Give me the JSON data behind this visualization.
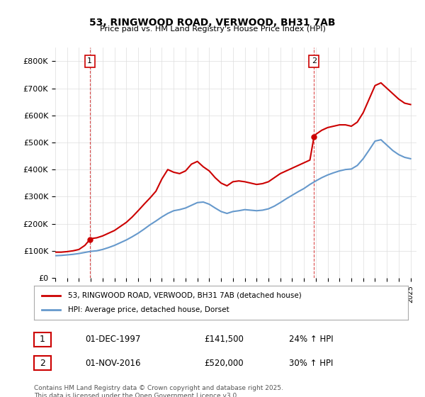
{
  "title": "53, RINGWOOD ROAD, VERWOOD, BH31 7AB",
  "subtitle": "Price paid vs. HM Land Registry's House Price Index (HPI)",
  "legend_label_red": "53, RINGWOOD ROAD, VERWOOD, BH31 7AB (detached house)",
  "legend_label_blue": "HPI: Average price, detached house, Dorset",
  "annotation1_label": "1",
  "annotation1_date": "01-DEC-1997",
  "annotation1_price": "£141,500",
  "annotation1_hpi": "24% ↑ HPI",
  "annotation2_label": "2",
  "annotation2_date": "01-NOV-2016",
  "annotation2_price": "£520,000",
  "annotation2_hpi": "30% ↑ HPI",
  "footer": "Contains HM Land Registry data © Crown copyright and database right 2025.\nThis data is licensed under the Open Government Licence v3.0.",
  "red_color": "#cc0000",
  "blue_color": "#6699cc",
  "vline_color": "#cc0000",
  "background_color": "#ffffff",
  "ylim": [
    0,
    850000
  ],
  "xlim_start": 1995.0,
  "xlim_end": 2025.5,
  "marker1_x": 1997.92,
  "marker1_y": 141500,
  "marker2_x": 2016.84,
  "marker2_y": 520000,
  "red_x": [
    1995.0,
    1995.5,
    1996.0,
    1996.5,
    1997.0,
    1997.5,
    1997.92,
    1998.0,
    1998.5,
    1999.0,
    1999.5,
    2000.0,
    2000.5,
    2001.0,
    2001.5,
    2002.0,
    2002.5,
    2003.0,
    2003.5,
    2004.0,
    2004.5,
    2005.0,
    2005.5,
    2006.0,
    2006.5,
    2007.0,
    2007.5,
    2008.0,
    2008.5,
    2009.0,
    2009.5,
    2010.0,
    2010.5,
    2011.0,
    2011.5,
    2012.0,
    2012.5,
    2013.0,
    2013.5,
    2014.0,
    2014.5,
    2015.0,
    2015.5,
    2016.0,
    2016.5,
    2016.84,
    2017.0,
    2017.5,
    2018.0,
    2018.5,
    2019.0,
    2019.5,
    2020.0,
    2020.5,
    2021.0,
    2021.5,
    2022.0,
    2022.5,
    2023.0,
    2023.5,
    2024.0,
    2024.5,
    2025.0
  ],
  "red_y": [
    95000,
    95000,
    97000,
    100000,
    105000,
    120000,
    141500,
    145000,
    148000,
    155000,
    165000,
    175000,
    190000,
    205000,
    225000,
    248000,
    272000,
    295000,
    320000,
    365000,
    400000,
    390000,
    385000,
    395000,
    420000,
    430000,
    410000,
    395000,
    370000,
    350000,
    340000,
    355000,
    358000,
    355000,
    350000,
    345000,
    348000,
    355000,
    370000,
    385000,
    395000,
    405000,
    415000,
    425000,
    435000,
    520000,
    530000,
    545000,
    555000,
    560000,
    565000,
    565000,
    560000,
    575000,
    610000,
    660000,
    710000,
    720000,
    700000,
    680000,
    660000,
    645000,
    640000
  ],
  "blue_x": [
    1995.0,
    1995.5,
    1996.0,
    1996.5,
    1997.0,
    1997.5,
    1998.0,
    1998.5,
    1999.0,
    1999.5,
    2000.0,
    2000.5,
    2001.0,
    2001.5,
    2002.0,
    2002.5,
    2003.0,
    2003.5,
    2004.0,
    2004.5,
    2005.0,
    2005.5,
    2006.0,
    2006.5,
    2007.0,
    2007.5,
    2008.0,
    2008.5,
    2009.0,
    2009.5,
    2010.0,
    2010.5,
    2011.0,
    2011.5,
    2012.0,
    2012.5,
    2013.0,
    2013.5,
    2014.0,
    2014.5,
    2015.0,
    2015.5,
    2016.0,
    2016.5,
    2017.0,
    2017.5,
    2018.0,
    2018.5,
    2019.0,
    2019.5,
    2020.0,
    2020.5,
    2021.0,
    2021.5,
    2022.0,
    2022.5,
    2023.0,
    2023.5,
    2024.0,
    2024.5,
    2025.0
  ],
  "blue_y": [
    82000,
    83000,
    85000,
    87000,
    90000,
    94000,
    98000,
    100000,
    105000,
    112000,
    120000,
    130000,
    140000,
    152000,
    165000,
    180000,
    196000,
    210000,
    225000,
    238000,
    248000,
    252000,
    258000,
    268000,
    278000,
    280000,
    272000,
    258000,
    245000,
    238000,
    245000,
    248000,
    252000,
    250000,
    248000,
    250000,
    255000,
    265000,
    278000,
    292000,
    305000,
    318000,
    330000,
    345000,
    358000,
    370000,
    380000,
    388000,
    395000,
    400000,
    402000,
    415000,
    440000,
    472000,
    505000,
    510000,
    490000,
    470000,
    455000,
    445000,
    440000
  ]
}
